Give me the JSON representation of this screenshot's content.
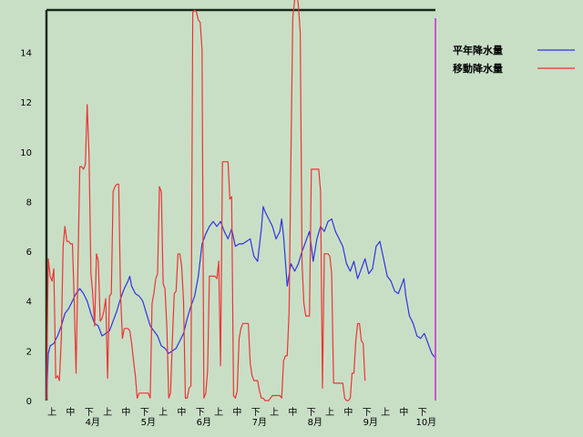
{
  "chart_data": {
    "type": "line",
    "ylim": [
      0,
      15.7
    ],
    "yticks": [
      0,
      2,
      4,
      6,
      8,
      10,
      12,
      14
    ],
    "xlim": [
      0,
      210
    ],
    "dekad_labels": [
      "上",
      "中",
      "下",
      "上",
      "中",
      "下",
      "上",
      "中",
      "下",
      "上",
      "中",
      "下",
      "上",
      "中",
      "下",
      "上",
      "中",
      "下",
      "上",
      "中",
      "下"
    ],
    "month_labels": [
      {
        "label": "4月",
        "x": 25
      },
      {
        "label": "5月",
        "x": 55
      },
      {
        "label": "6月",
        "x": 85
      },
      {
        "label": "7月",
        "x": 115
      },
      {
        "label": "8月",
        "x": 145
      },
      {
        "label": "9月",
        "x": 175
      },
      {
        "label": "10月",
        "x": 205
      }
    ],
    "grid": false,
    "legend_position": "top-right",
    "colors": {
      "background": "#c8dfc6",
      "axis": "#1a2a1a",
      "marker_line": "#cc55cc"
    },
    "series": [
      {
        "name": "平年降水量",
        "color": "#3333dd",
        "points": [
          [
            0,
            0
          ],
          [
            1,
            1.9
          ],
          [
            2,
            2.2
          ],
          [
            4,
            2.3
          ],
          [
            6,
            2.6
          ],
          [
            8,
            3.0
          ],
          [
            10,
            3.5
          ],
          [
            12,
            3.7
          ],
          [
            14,
            4.0
          ],
          [
            16,
            4.3
          ],
          [
            18,
            4.5
          ],
          [
            20,
            4.3
          ],
          [
            22,
            4.0
          ],
          [
            24,
            3.5
          ],
          [
            26,
            3.1
          ],
          [
            28,
            3.0
          ],
          [
            30,
            2.6
          ],
          [
            32,
            2.7
          ],
          [
            34,
            2.8
          ],
          [
            36,
            3.2
          ],
          [
            38,
            3.6
          ],
          [
            40,
            4.1
          ],
          [
            42,
            4.5
          ],
          [
            44,
            4.8
          ],
          [
            45,
            5.0
          ],
          [
            46,
            4.6
          ],
          [
            48,
            4.3
          ],
          [
            50,
            4.2
          ],
          [
            52,
            4.0
          ],
          [
            54,
            3.5
          ],
          [
            56,
            3.0
          ],
          [
            58,
            2.8
          ],
          [
            60,
            2.6
          ],
          [
            62,
            2.2
          ],
          [
            64,
            2.1
          ],
          [
            66,
            1.9
          ],
          [
            68,
            2.0
          ],
          [
            70,
            2.1
          ],
          [
            72,
            2.4
          ],
          [
            74,
            2.7
          ],
          [
            76,
            3.3
          ],
          [
            78,
            3.8
          ],
          [
            80,
            4.2
          ],
          [
            82,
            5.0
          ],
          [
            84,
            6.3
          ],
          [
            86,
            6.7
          ],
          [
            88,
            7.0
          ],
          [
            90,
            7.2
          ],
          [
            92,
            7.0
          ],
          [
            94,
            7.2
          ],
          [
            96,
            6.8
          ],
          [
            98,
            6.5
          ],
          [
            100,
            6.9
          ],
          [
            102,
            6.2
          ],
          [
            104,
            6.3
          ],
          [
            106,
            6.3
          ],
          [
            108,
            6.4
          ],
          [
            110,
            6.5
          ],
          [
            112,
            5.8
          ],
          [
            114,
            5.6
          ],
          [
            116,
            6.9
          ],
          [
            117,
            7.8
          ],
          [
            118,
            7.6
          ],
          [
            120,
            7.3
          ],
          [
            122,
            7.0
          ],
          [
            124,
            6.5
          ],
          [
            126,
            6.8
          ],
          [
            127,
            7.3
          ],
          [
            128,
            6.6
          ],
          [
            130,
            4.6
          ],
          [
            132,
            5.5
          ],
          [
            134,
            5.2
          ],
          [
            136,
            5.5
          ],
          [
            138,
            6.0
          ],
          [
            140,
            6.4
          ],
          [
            142,
            6.8
          ],
          [
            144,
            5.6
          ],
          [
            146,
            6.5
          ],
          [
            148,
            7.0
          ],
          [
            150,
            6.8
          ],
          [
            152,
            7.2
          ],
          [
            154,
            7.3
          ],
          [
            156,
            6.8
          ],
          [
            158,
            6.5
          ],
          [
            160,
            6.2
          ],
          [
            162,
            5.5
          ],
          [
            164,
            5.2
          ],
          [
            166,
            5.6
          ],
          [
            168,
            4.9
          ],
          [
            170,
            5.3
          ],
          [
            172,
            5.7
          ],
          [
            174,
            5.1
          ],
          [
            176,
            5.3
          ],
          [
            178,
            6.2
          ],
          [
            180,
            6.4
          ],
          [
            182,
            5.7
          ],
          [
            184,
            5.0
          ],
          [
            186,
            4.8
          ],
          [
            188,
            4.4
          ],
          [
            190,
            4.3
          ],
          [
            192,
            4.7
          ],
          [
            193,
            4.9
          ],
          [
            194,
            4.2
          ],
          [
            196,
            3.4
          ],
          [
            198,
            3.1
          ],
          [
            200,
            2.6
          ],
          [
            202,
            2.5
          ],
          [
            204,
            2.7
          ],
          [
            206,
            2.3
          ],
          [
            208,
            1.9
          ],
          [
            210,
            1.7
          ]
        ]
      },
      {
        "name": "移動降水量",
        "color": "#ee3333",
        "points": [
          [
            0,
            0
          ],
          [
            1,
            5.7
          ],
          [
            2,
            5.0
          ],
          [
            3,
            4.8
          ],
          [
            4,
            5.3
          ],
          [
            5,
            0.9
          ],
          [
            6,
            1.0
          ],
          [
            7,
            0.8
          ],
          [
            8,
            2.5
          ],
          [
            9,
            6.2
          ],
          [
            10,
            7.0
          ],
          [
            11,
            6.4
          ],
          [
            12,
            6.4
          ],
          [
            13,
            6.3
          ],
          [
            14,
            6.3
          ],
          [
            15,
            4.0
          ],
          [
            16,
            1.1
          ],
          [
            17,
            5.5
          ],
          [
            18,
            9.4
          ],
          [
            19,
            9.4
          ],
          [
            20,
            9.3
          ],
          [
            21,
            9.5
          ],
          [
            22,
            11.9
          ],
          [
            23,
            9.8
          ],
          [
            24,
            5.1
          ],
          [
            25,
            4.3
          ],
          [
            26,
            3.0
          ],
          [
            27,
            5.9
          ],
          [
            28,
            5.6
          ],
          [
            29,
            3.2
          ],
          [
            30,
            3.3
          ],
          [
            31,
            3.6
          ],
          [
            32,
            4.1
          ],
          [
            33,
            0.9
          ],
          [
            34,
            4.2
          ],
          [
            35,
            4.3
          ],
          [
            36,
            8.4
          ],
          [
            37,
            8.6
          ],
          [
            38,
            8.7
          ],
          [
            39,
            8.7
          ],
          [
            40,
            4.3
          ],
          [
            41,
            2.5
          ],
          [
            42,
            2.9
          ],
          [
            43,
            2.9
          ],
          [
            44,
            2.9
          ],
          [
            45,
            2.8
          ],
          [
            46,
            2.3
          ],
          [
            47,
            1.6
          ],
          [
            48,
            1.0
          ],
          [
            49,
            0.1
          ],
          [
            50,
            0.3
          ],
          [
            51,
            0.3
          ],
          [
            52,
            0.3
          ],
          [
            53,
            0.3
          ],
          [
            54,
            0.3
          ],
          [
            55,
            0.3
          ],
          [
            56,
            0.1
          ],
          [
            57,
            3.9
          ],
          [
            58,
            4.3
          ],
          [
            59,
            4.9
          ],
          [
            60,
            5.1
          ],
          [
            61,
            8.6
          ],
          [
            62,
            8.4
          ],
          [
            63,
            4.7
          ],
          [
            64,
            4.5
          ],
          [
            65,
            2.9
          ],
          [
            66,
            0.1
          ],
          [
            67,
            0.3
          ],
          [
            68,
            2.5
          ],
          [
            69,
            4.3
          ],
          [
            70,
            4.4
          ],
          [
            71,
            5.9
          ],
          [
            72,
            5.9
          ],
          [
            73,
            5.4
          ],
          [
            74,
            4.0
          ],
          [
            75,
            0.1
          ],
          [
            76,
            0.1
          ],
          [
            77,
            0.5
          ],
          [
            78,
            0.6
          ],
          [
            79,
            15.6
          ],
          [
            80,
            15.7
          ],
          [
            81,
            15.6
          ],
          [
            82,
            15.3
          ],
          [
            83,
            15.2
          ],
          [
            84,
            14.1
          ],
          [
            85,
            0.1
          ],
          [
            86,
            0.3
          ],
          [
            87,
            1.2
          ],
          [
            88,
            5.0
          ],
          [
            89,
            5.0
          ],
          [
            90,
            5.0
          ],
          [
            91,
            5.0
          ],
          [
            92,
            4.9
          ],
          [
            93,
            5.6
          ],
          [
            94,
            1.4
          ],
          [
            95,
            9.6
          ],
          [
            96,
            9.6
          ],
          [
            97,
            9.6
          ],
          [
            98,
            9.6
          ],
          [
            99,
            8.1
          ],
          [
            100,
            8.2
          ],
          [
            101,
            0.2
          ],
          [
            102,
            0.1
          ],
          [
            103,
            0.4
          ],
          [
            104,
            2.5
          ],
          [
            105,
            2.9
          ],
          [
            106,
            3.1
          ],
          [
            107,
            3.1
          ],
          [
            108,
            3.1
          ],
          [
            109,
            3.1
          ],
          [
            110,
            1.5
          ],
          [
            111,
            1.0
          ],
          [
            112,
            0.8
          ],
          [
            113,
            0.8
          ],
          [
            114,
            0.8
          ],
          [
            115,
            0.4
          ],
          [
            116,
            0.1
          ],
          [
            117,
            0.1
          ],
          [
            118,
            0.0
          ],
          [
            119,
            0.0
          ],
          [
            120,
            0.0
          ],
          [
            121,
            0.1
          ],
          [
            122,
            0.2
          ],
          [
            123,
            0.2
          ],
          [
            124,
            0.2
          ],
          [
            125,
            0.2
          ],
          [
            126,
            0.2
          ],
          [
            127,
            0.1
          ],
          [
            128,
            1.6
          ],
          [
            129,
            1.8
          ],
          [
            130,
            1.8
          ],
          [
            131,
            3.6
          ],
          [
            132,
            9.9
          ],
          [
            133,
            15.4
          ],
          [
            134,
            16.1
          ],
          [
            135,
            16.5
          ],
          [
            136,
            15.9
          ],
          [
            137,
            14.8
          ],
          [
            138,
            5.5
          ],
          [
            139,
            3.9
          ],
          [
            140,
            3.4
          ],
          [
            141,
            3.4
          ],
          [
            142,
            3.4
          ],
          [
            143,
            9.3
          ],
          [
            144,
            9.3
          ],
          [
            145,
            9.3
          ],
          [
            146,
            9.3
          ],
          [
            147,
            9.3
          ],
          [
            148,
            8.4
          ],
          [
            149,
            0.5
          ],
          [
            150,
            5.9
          ],
          [
            151,
            5.9
          ],
          [
            152,
            5.9
          ],
          [
            153,
            5.8
          ],
          [
            154,
            5.1
          ],
          [
            155,
            0.7
          ],
          [
            156,
            0.7
          ],
          [
            157,
            0.7
          ],
          [
            158,
            0.7
          ],
          [
            159,
            0.7
          ],
          [
            160,
            0.7
          ],
          [
            161,
            0.1
          ],
          [
            162,
            0.0
          ],
          [
            163,
            0.0
          ],
          [
            164,
            0.1
          ],
          [
            165,
            1.1
          ],
          [
            166,
            1.1
          ],
          [
            167,
            2.4
          ],
          [
            168,
            3.1
          ],
          [
            169,
            3.1
          ],
          [
            170,
            2.4
          ],
          [
            171,
            2.3
          ],
          [
            172,
            0.8
          ]
        ]
      }
    ]
  }
}
